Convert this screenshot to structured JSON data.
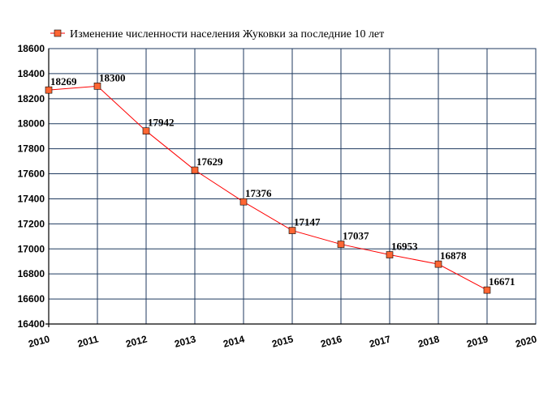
{
  "chart_data": {
    "type": "line",
    "title": "",
    "xlabel": "",
    "ylabel": "",
    "x_ticks": [
      "2010",
      "2011",
      "2012",
      "2013",
      "2014",
      "2015",
      "2016",
      "2017",
      "2018",
      "2019",
      "2020"
    ],
    "xlim": [
      2010,
      2020
    ],
    "y_ticks": [
      "16400",
      "16600",
      "16800",
      "17000",
      "17200",
      "17400",
      "17600",
      "17800",
      "18000",
      "18200",
      "18400",
      "18600"
    ],
    "ylim": [
      16400,
      18600
    ],
    "grid": true,
    "legend_position": "top-left",
    "series": [
      {
        "name": "Изменение численности населения Жуковки за последние 10 лет",
        "color": "#ff0000",
        "marker_color": "#ff6633",
        "x": [
          2010,
          2011,
          2012,
          2013,
          2014,
          2015,
          2016,
          2017,
          2018,
          2019
        ],
        "values": [
          18269,
          18300,
          17942,
          17629,
          17376,
          17147,
          17037,
          16953,
          16878,
          16671
        ],
        "labels": [
          "18269",
          "18300",
          "17942",
          "17629",
          "17376",
          "17147",
          "17037",
          "16953",
          "16878",
          "16671"
        ]
      }
    ]
  },
  "colors": {
    "grid": "#1f3a5f",
    "axis": "#000000"
  }
}
